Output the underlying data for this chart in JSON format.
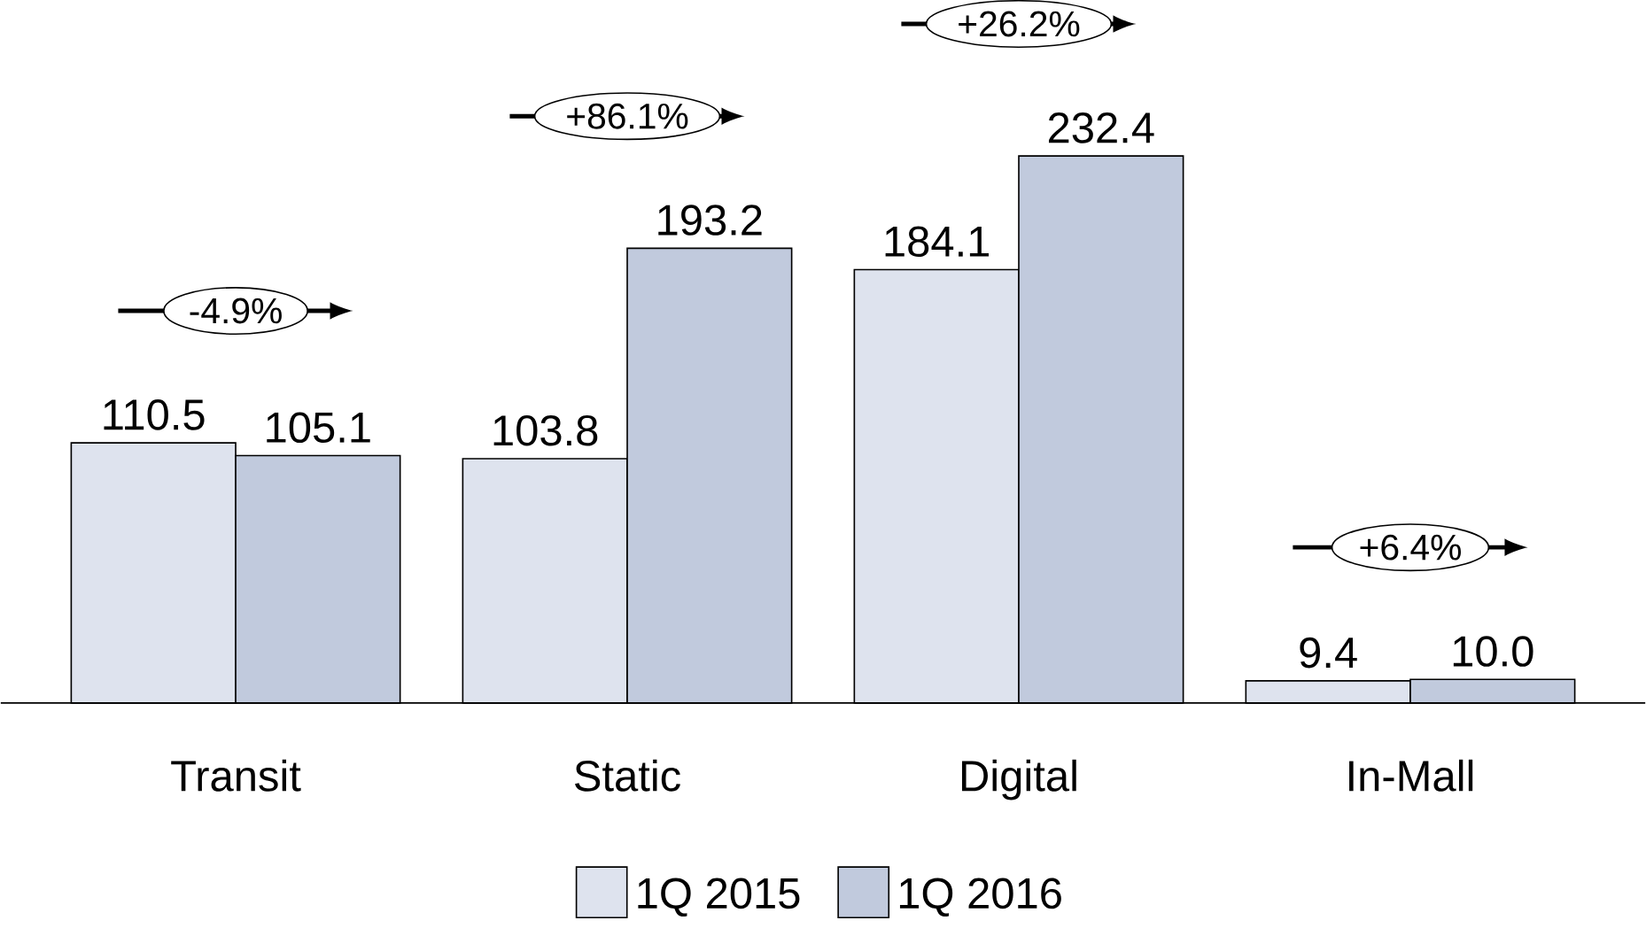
{
  "chart_data": {
    "type": "bar",
    "categories": [
      "Transit",
      "Static",
      "Digital",
      "In-Mall"
    ],
    "series": [
      {
        "name": "1Q 2015",
        "color": "#dee3ee",
        "values": [
          110.5,
          103.8,
          184.1,
          9.4
        ],
        "value_labels": [
          "110.5",
          "103.8",
          "184.1",
          "9.4"
        ]
      },
      {
        "name": "1Q 2016",
        "color": "#c1cadd",
        "values": [
          105.1,
          193.2,
          232.4,
          10.0
        ],
        "value_labels": [
          "105.1",
          "193.2",
          "232.4",
          "10.0"
        ]
      }
    ],
    "legend": "bottom",
    "annotations": [
      "-4.9%",
      "+86.1%",
      "+26.2%",
      "+6.4%"
    ]
  }
}
